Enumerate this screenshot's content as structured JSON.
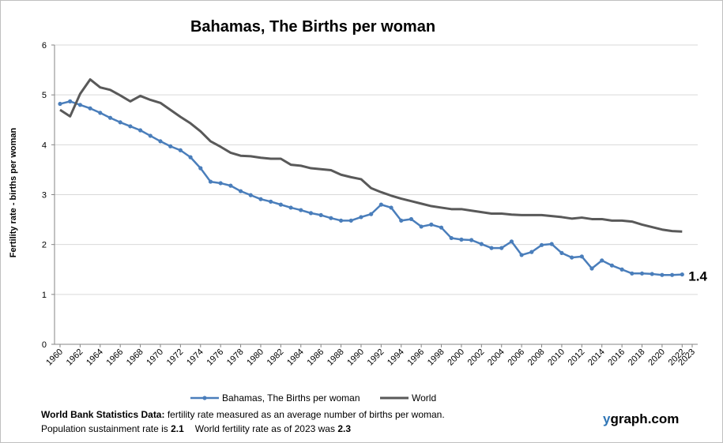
{
  "chart_data": {
    "type": "line",
    "title": "Bahamas, The Births per woman",
    "y_label": "Fertility rate  - births per woman",
    "x": [
      1960,
      1961,
      1962,
      1963,
      1964,
      1965,
      1966,
      1967,
      1968,
      1969,
      1970,
      1971,
      1972,
      1973,
      1974,
      1975,
      1976,
      1977,
      1978,
      1979,
      1980,
      1981,
      1982,
      1983,
      1984,
      1985,
      1986,
      1987,
      1988,
      1989,
      1990,
      1991,
      1992,
      1993,
      1994,
      1995,
      1996,
      1997,
      1998,
      1999,
      2000,
      2001,
      2002,
      2003,
      2004,
      2005,
      2006,
      2007,
      2008,
      2009,
      2010,
      2011,
      2012,
      2013,
      2014,
      2015,
      2016,
      2017,
      2018,
      2019,
      2020,
      2021,
      2022
    ],
    "series": [
      {
        "name": "Bahamas, The Births per woman",
        "color": "#4a7ebb",
        "markers": true,
        "values": [
          4.82,
          4.87,
          4.8,
          4.73,
          4.64,
          4.54,
          4.45,
          4.37,
          4.29,
          4.18,
          4.07,
          3.97,
          3.89,
          3.75,
          3.53,
          3.26,
          3.23,
          3.18,
          3.07,
          2.99,
          2.91,
          2.86,
          2.8,
          2.74,
          2.69,
          2.63,
          2.59,
          2.53,
          2.48,
          2.48,
          2.55,
          2.61,
          2.8,
          2.74,
          2.48,
          2.51,
          2.36,
          2.4,
          2.34,
          2.13,
          2.1,
          2.09,
          2.01,
          1.93,
          1.93,
          2.06,
          1.79,
          1.85,
          1.99,
          2.01,
          1.83,
          1.74,
          1.76,
          1.52,
          1.68,
          1.58,
          1.5,
          1.42,
          1.42,
          1.41,
          1.39,
          1.39,
          1.4
        ]
      },
      {
        "name": "World",
        "color": "#595959",
        "markers": false,
        "values": [
          4.7,
          4.57,
          5.02,
          5.31,
          5.15,
          5.1,
          4.99,
          4.87,
          4.98,
          4.9,
          4.84,
          4.7,
          4.56,
          4.43,
          4.27,
          4.07,
          3.96,
          3.84,
          3.78,
          3.77,
          3.74,
          3.72,
          3.72,
          3.6,
          3.58,
          3.53,
          3.51,
          3.49,
          3.4,
          3.35,
          3.31,
          3.13,
          3.05,
          2.98,
          2.92,
          2.87,
          2.82,
          2.77,
          2.74,
          2.71,
          2.71,
          2.68,
          2.65,
          2.62,
          2.62,
          2.6,
          2.59,
          2.59,
          2.59,
          2.57,
          2.55,
          2.52,
          2.54,
          2.51,
          2.51,
          2.48,
          2.48,
          2.46,
          2.4,
          2.35,
          2.3,
          2.27,
          2.26
        ]
      }
    ],
    "end_label_series": 0,
    "xlim": [
      1960,
      2023
    ],
    "xticks": [
      1960,
      1962,
      1964,
      1966,
      1968,
      1970,
      1972,
      1974,
      1976,
      1978,
      1980,
      1982,
      1984,
      1986,
      1988,
      1990,
      1992,
      1994,
      1996,
      1998,
      2000,
      2002,
      2004,
      2006,
      2008,
      2010,
      2012,
      2014,
      2016,
      2018,
      2020,
      2022,
      2023
    ],
    "ylim": [
      0,
      6
    ],
    "yticks": [
      0,
      1,
      2,
      3,
      4,
      5,
      6
    ],
    "grid": true
  },
  "footer": {
    "source_label": "World Bank Statistics Data:",
    "source_text": "fertility rate measured as an average number of births per woman.",
    "sustain_text": "Population sustainment rate is",
    "sustain_value": "2.1",
    "world_text": "World fertility rate as of 2023 was",
    "world_value": "2.3",
    "brand_y": "y",
    "brand_rest": "graph.com"
  }
}
